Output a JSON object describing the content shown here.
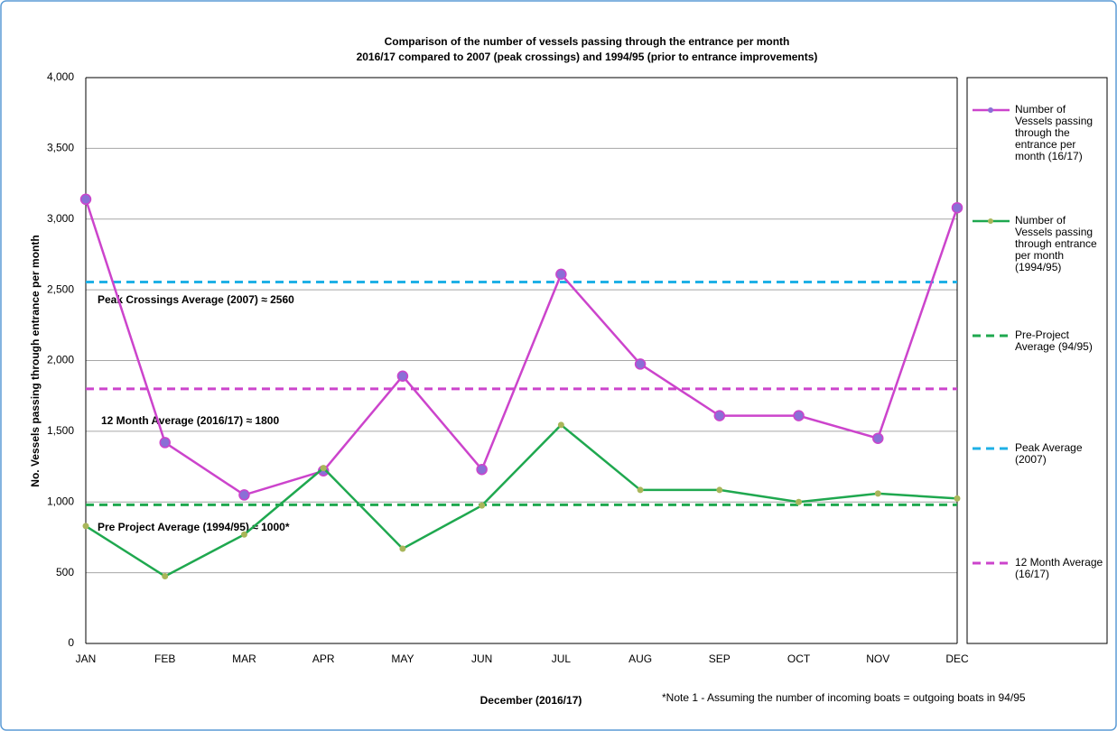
{
  "chart_data": {
    "type": "line",
    "title": [
      "Comparison of the number of vessels passing through the entrance per month",
      "2016/17 compared to 2007 (peak crossings) and 1994/95 (prior to entrance improvements)"
    ],
    "x_label": "December (2016/17)",
    "y_label": "No. Vessels passing through entrance per month",
    "note": "*Note 1 - Assuming the number of incoming boats = outgoing boats in 94/95",
    "annotations": [
      "Peak Crossings Average (2007) ≈ 2560",
      "12 Month Average (2016/17) ≈ 1800",
      "Pre Project Average (1994/95) ≈ 1000*"
    ],
    "categories": [
      "JAN",
      "FEB",
      "MAR",
      "APR",
      "MAY",
      "JUN",
      "JUL",
      "AUG",
      "SEP",
      "OCT",
      "NOV",
      "DEC"
    ],
    "ylim": [
      0,
      4000
    ],
    "yticks": [
      0,
      {
        "value": 500,
        "label": "500"
      },
      {
        "value": 1000,
        "label": "1,000"
      },
      {
        "value": 1500,
        "label": "1,500"
      },
      {
        "value": 2000,
        "label": "2,000"
      },
      {
        "value": 2500,
        "label": "2,500"
      },
      {
        "value": 3000,
        "label": "3,000"
      },
      {
        "value": 3500,
        "label": "3,500"
      },
      {
        "value": 4000,
        "label": "4,000"
      }
    ],
    "grid": true,
    "legend": "right",
    "series": [
      {
        "name": "Number of Vessels passing through the entrance per month (16/17)",
        "color": "#cc44cc",
        "marker_color": "#8a6fd6",
        "dashed": false,
        "values": [
          3140,
          1420,
          1050,
          1220,
          1890,
          1230,
          2610,
          1975,
          1610,
          1610,
          1450,
          3080
        ]
      },
      {
        "name": "Number of Vessels passing through entrance per month (1994/95)",
        "color": "#1fa84f",
        "marker_color": "#a9b65a",
        "dashed": false,
        "values": [
          830,
          475,
          770,
          1240,
          670,
          975,
          1545,
          1085,
          1085,
          1000,
          1060,
          1025
        ]
      },
      {
        "name": "Pre-Project Average (94/95)",
        "color": "#1fa84f",
        "dashed": true,
        "values": [
          980,
          980,
          980,
          980,
          980,
          980,
          980,
          980,
          980,
          980,
          980,
          980
        ]
      },
      {
        "name": "Peak Average (2007)",
        "color": "#1fb0e6",
        "dashed": true,
        "values": [
          2555,
          2555,
          2555,
          2555,
          2555,
          2555,
          2555,
          2555,
          2555,
          2555,
          2555,
          2555
        ]
      },
      {
        "name": "12 Month Average (16/17)",
        "color": "#cc44cc",
        "dashed": true,
        "values": [
          1800,
          1800,
          1800,
          1800,
          1800,
          1800,
          1800,
          1800,
          1800,
          1800,
          1800,
          1800
        ]
      }
    ]
  }
}
